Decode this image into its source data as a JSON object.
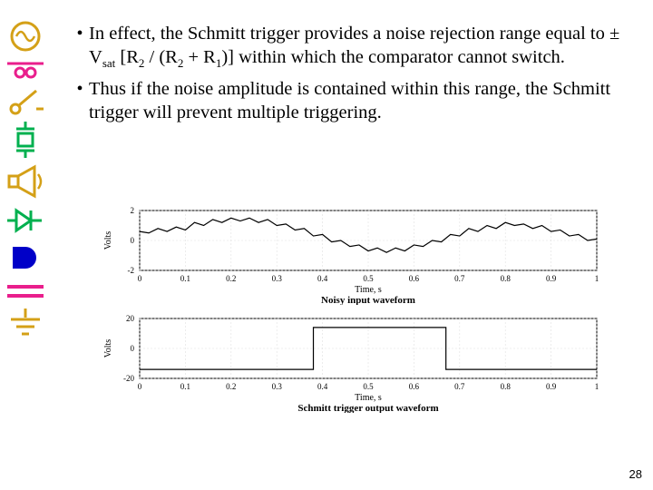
{
  "sidebar_icons": [
    {
      "name": "sine-source-icon",
      "color": "#d4a017"
    },
    {
      "name": "connector-icon",
      "color": "#e91e8c"
    },
    {
      "name": "switch-icon",
      "color": "#d4a017"
    },
    {
      "name": "crystal-icon",
      "color": "#00b04f"
    },
    {
      "name": "speaker-icon",
      "color": "#d4a017"
    },
    {
      "name": "diode-icon",
      "color": "#00b04f"
    },
    {
      "name": "shape-icon",
      "color": "#0000c8"
    },
    {
      "name": "capacitor-icon",
      "color": "#e91e8c"
    },
    {
      "name": "ground-icon",
      "color": "#d4a017"
    }
  ],
  "bullets": [
    {
      "text_parts": [
        "In effect, the Schmitt trigger provides a noise rejection range equal to ± V",
        {
          "sub": "sat"
        },
        " [R",
        {
          "sub": "2"
        },
        " / (R",
        {
          "sub": "2"
        },
        " + R",
        {
          "sub": "1"
        },
        ")] within which the comparator cannot switch."
      ]
    },
    {
      "text_parts": [
        "Thus if the noise amplitude is contained within this range, the Schmitt trigger will prevent multiple triggering."
      ]
    }
  ],
  "chart1": {
    "type": "line",
    "ylabel": "Volts",
    "xlabel": "Time, s",
    "caption": "Noisy input waveform",
    "ylim": [
      -2,
      2
    ],
    "yticks": [
      -2,
      0,
      2
    ],
    "xlim": [
      0,
      1
    ],
    "xticks": [
      0,
      0.1,
      0.2,
      0.3,
      0.4,
      0.5,
      0.6,
      0.7,
      0.8,
      0.9,
      1
    ],
    "grid_color": "#e0e0e0",
    "line_color": "#000000",
    "background_color": "#ffffff",
    "axis_color": "#000000",
    "label_fontsize": 10,
    "tick_fontsize": 9,
    "data": [
      [
        0,
        0.6
      ],
      [
        0.02,
        0.5
      ],
      [
        0.04,
        0.8
      ],
      [
        0.06,
        0.6
      ],
      [
        0.08,
        0.9
      ],
      [
        0.1,
        0.7
      ],
      [
        0.12,
        1.2
      ],
      [
        0.14,
        1.0
      ],
      [
        0.16,
        1.4
      ],
      [
        0.18,
        1.2
      ],
      [
        0.2,
        1.5
      ],
      [
        0.22,
        1.3
      ],
      [
        0.24,
        1.5
      ],
      [
        0.26,
        1.2
      ],
      [
        0.28,
        1.4
      ],
      [
        0.3,
        1.0
      ],
      [
        0.32,
        1.1
      ],
      [
        0.34,
        0.7
      ],
      [
        0.36,
        0.8
      ],
      [
        0.38,
        0.3
      ],
      [
        0.4,
        0.4
      ],
      [
        0.42,
        -0.1
      ],
      [
        0.44,
        0.0
      ],
      [
        0.46,
        -0.4
      ],
      [
        0.48,
        -0.3
      ],
      [
        0.5,
        -0.7
      ],
      [
        0.52,
        -0.5
      ],
      [
        0.54,
        -0.8
      ],
      [
        0.56,
        -0.5
      ],
      [
        0.58,
        -0.7
      ],
      [
        0.6,
        -0.3
      ],
      [
        0.62,
        -0.4
      ],
      [
        0.64,
        0.0
      ],
      [
        0.66,
        -0.1
      ],
      [
        0.68,
        0.4
      ],
      [
        0.7,
        0.3
      ],
      [
        0.72,
        0.8
      ],
      [
        0.74,
        0.6
      ],
      [
        0.76,
        1.0
      ],
      [
        0.78,
        0.8
      ],
      [
        0.8,
        1.2
      ],
      [
        0.82,
        1.0
      ],
      [
        0.84,
        1.1
      ],
      [
        0.86,
        0.8
      ],
      [
        0.88,
        1.0
      ],
      [
        0.9,
        0.6
      ],
      [
        0.92,
        0.7
      ],
      [
        0.94,
        0.3
      ],
      [
        0.96,
        0.4
      ],
      [
        0.98,
        0.0
      ],
      [
        1.0,
        0.1
      ]
    ]
  },
  "chart2": {
    "type": "step",
    "ylabel": "Volts",
    "xlabel": "Time, s",
    "caption": "Schmitt trigger output waveform",
    "ylim": [
      -20,
      20
    ],
    "yticks": [
      -20,
      0,
      20
    ],
    "xlim": [
      0,
      1
    ],
    "xticks": [
      0,
      0.1,
      0.2,
      0.3,
      0.4,
      0.5,
      0.6,
      0.7,
      0.8,
      0.9,
      1
    ],
    "grid_color": "#e0e0e0",
    "line_color": "#000000",
    "background_color": "#ffffff",
    "axis_color": "#000000",
    "label_fontsize": 10,
    "tick_fontsize": 9,
    "data": [
      [
        0,
        -14
      ],
      [
        0.38,
        -14
      ],
      [
        0.38,
        14
      ],
      [
        0.67,
        14
      ],
      [
        0.67,
        -14
      ],
      [
        1.0,
        -14
      ]
    ]
  },
  "page_number": "28"
}
